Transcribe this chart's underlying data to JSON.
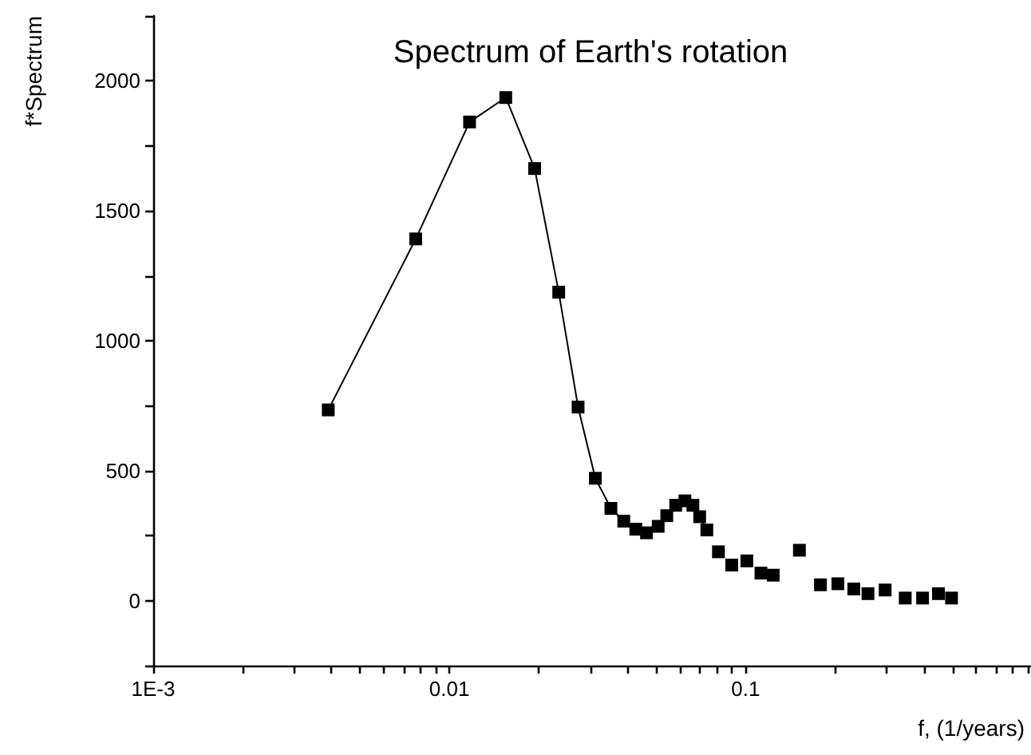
{
  "chart_data": {
    "type": "line",
    "title": "Spectrum of Earth's rotation",
    "xlabel": "f, (1/years)",
    "ylabel": "f*Spectrum",
    "log": "x",
    "marker": "square",
    "line_style": "solid",
    "grid": false,
    "xlim": [
      0.001,
      0.92
    ],
    "xticks": [
      {
        "value": 0.001,
        "label": "1E-3"
      },
      {
        "value": 0.002,
        "label": null
      },
      {
        "value": 0.003,
        "label": null
      },
      {
        "value": 0.004,
        "label": null
      },
      {
        "value": 0.005,
        "label": null
      },
      {
        "value": 0.006,
        "label": null
      },
      {
        "value": 0.007,
        "label": null
      },
      {
        "value": 0.008,
        "label": null
      },
      {
        "value": 0.009,
        "label": null
      },
      0.01,
      {
        "value": 0.02,
        "label": null
      },
      {
        "value": 0.03,
        "label": null
      },
      {
        "value": 0.04,
        "label": null
      },
      {
        "value": 0.05,
        "label": null
      },
      {
        "value": 0.06,
        "label": null
      },
      {
        "value": 0.07,
        "label": null
      },
      {
        "value": 0.08,
        "label": null
      },
      {
        "value": 0.09,
        "label": null
      },
      0.1,
      {
        "value": 0.2,
        "label": null
      },
      {
        "value": 0.3,
        "label": null
      },
      {
        "value": 0.4,
        "label": null
      },
      {
        "value": 0.5,
        "label": null
      },
      {
        "value": 0.6,
        "label": null
      },
      {
        "value": 0.7,
        "label": null
      },
      {
        "value": 0.8,
        "label": null
      },
      {
        "value": 0.9,
        "label": null
      }
    ],
    "ylim": [
      -250,
      2250
    ],
    "yticks": [
      {
        "value": -250,
        "label": null
      },
      0,
      {
        "value": 250,
        "label": null
      },
      500,
      {
        "value": 750,
        "label": null
      },
      1000,
      {
        "value": 1250,
        "label": null
      },
      1500,
      {
        "value": 1750,
        "label": null
      },
      2000,
      {
        "value": 2250,
        "label": null
      }
    ],
    "series": [
      {
        "color": "#000000",
        "x": [
          0.0039,
          0.0077,
          0.0117,
          0.0155,
          0.0194,
          0.0234,
          0.0272,
          0.0311,
          0.0351,
          0.0388,
          0.0426,
          0.0463,
          0.0507,
          0.0542,
          0.0581,
          0.0624,
          0.0664,
          0.07,
          0.074
        ],
        "values": [
          734,
          1392,
          1842,
          1936,
          1663,
          1187,
          745,
          471,
          355,
          306,
          275,
          261,
          286,
          327,
          367,
          384,
          367,
          323,
          272
        ]
      },
      {
        "type": "scatter",
        "color": "#000000",
        "x": [
          0.081,
          0.0898,
          0.101,
          0.1127,
          0.124,
          0.152,
          0.179,
          0.205,
          0.232,
          0.259,
          0.296,
          0.346,
          0.396,
          0.448,
          0.496
        ],
        "values": [
          188,
          137,
          153,
          106,
          98,
          194,
          61,
          65,
          45,
          27,
          41,
          10,
          10,
          27,
          10
        ]
      }
    ]
  }
}
